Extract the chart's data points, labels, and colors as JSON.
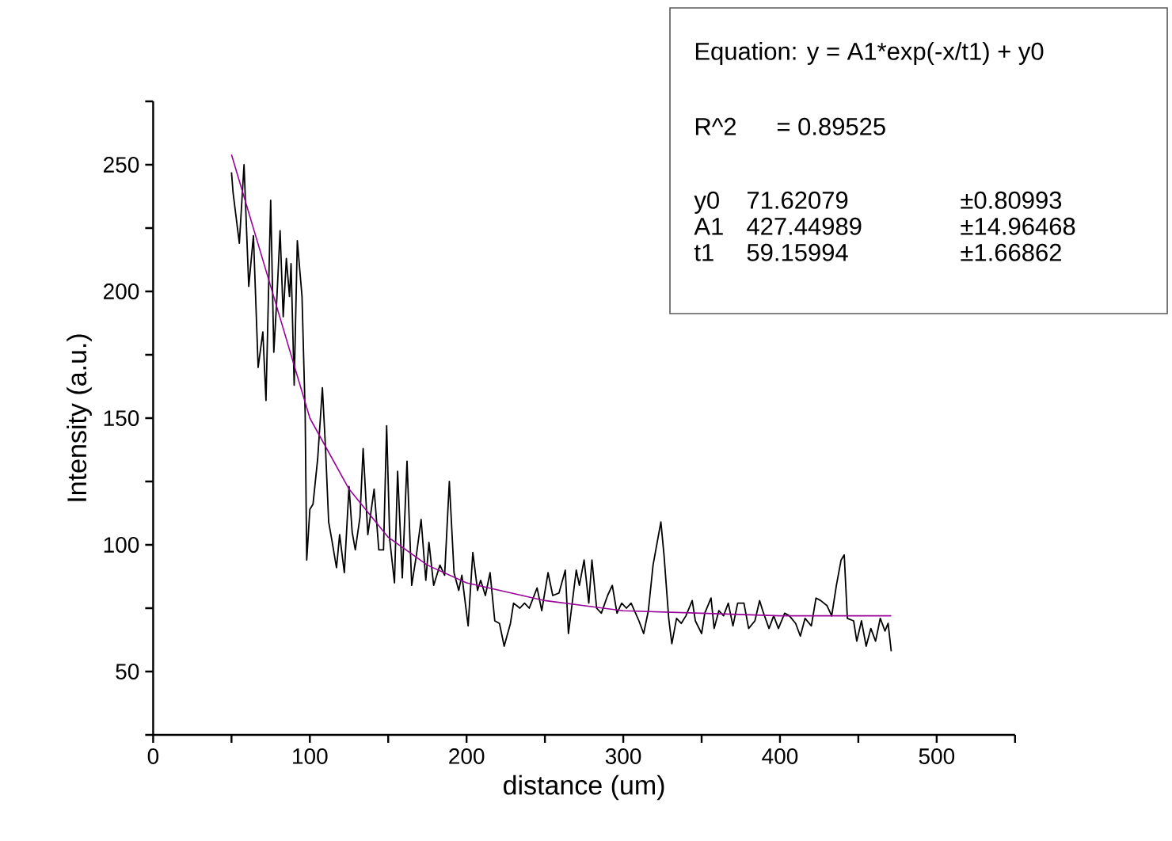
{
  "chart_data": {
    "type": "line",
    "xlabel": "distance (um)",
    "ylabel": "Intensity (a.u.)",
    "xlim": [
      0,
      550
    ],
    "ylim": [
      25,
      275
    ],
    "xticks": [
      0,
      {
        "value": 50,
        "label": null
      },
      100,
      {
        "value": 150,
        "label": null
      },
      200,
      {
        "value": 250,
        "label": null
      },
      300,
      {
        "value": 350,
        "label": null
      },
      400,
      {
        "value": 450,
        "label": null
      },
      500,
      {
        "value": 550,
        "label": null
      }
    ],
    "yticks": [
      {
        "value": 25,
        "label": null
      },
      50,
      {
        "value": 75,
        "label": null
      },
      100,
      {
        "value": 125,
        "label": null
      },
      150,
      {
        "value": 175,
        "label": null
      },
      200,
      {
        "value": 225,
        "label": null
      },
      250,
      {
        "value": 275,
        "label": null
      }
    ],
    "annotations": [
      "Equation: y = A1*exp(-x/t1) + y0",
      "R^2",
      "=  0.89525",
      "y0",
      "71.62079",
      "±0.80993",
      "A1",
      "427.44989",
      "±14.96468",
      "t1",
      "59.15994",
      "±1.66862"
    ],
    "series": [
      {
        "color": "#000000",
        "x": [
          50,
          51,
          55,
          58,
          61,
          64,
          67,
          70,
          72,
          75,
          77,
          79,
          81,
          83,
          85,
          87,
          88,
          90,
          92,
          95,
          97,
          98,
          100,
          102,
          105,
          108,
          110,
          112,
          114,
          117,
          119,
          122,
          125,
          127,
          129,
          132,
          134,
          137,
          139,
          141,
          144,
          147,
          149,
          151,
          154,
          156,
          159,
          162,
          165,
          168,
          171,
          174,
          176,
          179,
          183,
          186,
          189,
          192,
          195,
          197,
          201,
          204,
          207,
          209,
          212,
          215,
          218,
          221,
          224,
          228,
          230,
          234,
          237,
          240,
          245,
          248,
          252,
          255,
          259,
          263,
          265,
          270,
          272,
          275,
          278,
          280,
          283,
          286,
          290,
          293,
          296,
          299,
          302,
          305,
          310,
          313,
          316,
          319,
          324,
          326,
          329,
          331,
          334,
          337,
          340,
          344,
          346,
          350,
          352,
          356,
          358,
          361,
          364,
          367,
          370,
          373,
          377,
          380,
          384,
          387,
          389,
          393,
          396,
          399,
          403,
          406,
          410,
          413,
          416,
          420,
          423,
          426,
          430,
          433,
          436,
          439,
          441,
          443,
          447,
          449,
          452,
          455,
          458,
          461,
          464,
          467,
          469,
          471
        ],
        "values": [
          247,
          239,
          219,
          250,
          202,
          222,
          170,
          184,
          157,
          236,
          176,
          198,
          224,
          190,
          213,
          198,
          211,
          163,
          220,
          198,
          152,
          94,
          114,
          116,
          134,
          162,
          138,
          109,
          102,
          91,
          104,
          89,
          123,
          105,
          98,
          111,
          138,
          104,
          113,
          122,
          98,
          98,
          147,
          102,
          85,
          129,
          87,
          133,
          84,
          96,
          110,
          86,
          101,
          84,
          92,
          88,
          125,
          89,
          82,
          88,
          68,
          97,
          82,
          86,
          80,
          89,
          70,
          69,
          60,
          69,
          77,
          75,
          77,
          75,
          83,
          74,
          89,
          80,
          81,
          90,
          65,
          90,
          84,
          94,
          77,
          94,
          75,
          73,
          80,
          84,
          73,
          77,
          75,
          77,
          70,
          65,
          74,
          92,
          109,
          96,
          71,
          61,
          71,
          69,
          72,
          78,
          70,
          65,
          73,
          79,
          67,
          74,
          72,
          77,
          68,
          77,
          77,
          67,
          70,
          78,
          74,
          67,
          72,
          67,
          73,
          72,
          69,
          64,
          71,
          68,
          79,
          78,
          76,
          72,
          84,
          94,
          96,
          71,
          70,
          62,
          70,
          60,
          67,
          62,
          71,
          66,
          69,
          58
        ]
      },
      {
        "color": "#990099",
        "x": [
          50,
          75,
          100,
          125,
          150,
          175,
          200,
          250,
          300,
          350,
          400,
          471
        ],
        "values": [
          254,
          202,
          150,
          122,
          103,
          92,
          85,
          78,
          74,
          73,
          72,
          72
        ]
      }
    ]
  }
}
